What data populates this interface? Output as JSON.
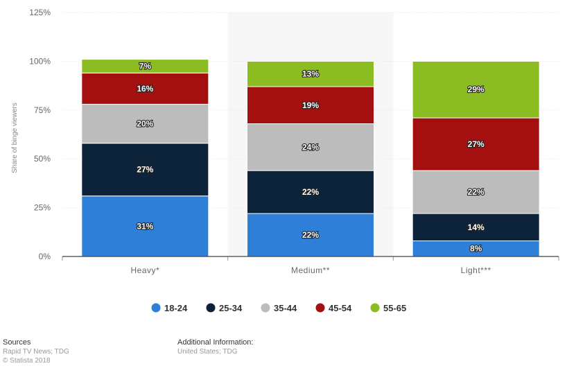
{
  "chart_data": {
    "type": "bar",
    "stacked": true,
    "title": "",
    "xlabel": "",
    "ylabel": "Share of binge viewers",
    "ylim": [
      0,
      125
    ],
    "yticks": [
      "0%",
      "25%",
      "50%",
      "75%",
      "100%",
      "125%"
    ],
    "ytick_values": [
      0,
      25,
      50,
      75,
      100,
      125
    ],
    "categories": [
      "Heavy*",
      "Medium**",
      "Light***"
    ],
    "highlighted_category": "Medium**",
    "grid": true,
    "legend_position": "bottom",
    "series": [
      {
        "name": "18-24",
        "color": "#2f7ed8",
        "values": [
          31,
          22,
          8
        ],
        "labels": [
          "31%",
          "22%",
          "8%"
        ]
      },
      {
        "name": "25-34",
        "color": "#0d233a",
        "values": [
          27,
          22,
          14
        ],
        "labels": [
          "27%",
          "22%",
          "14%"
        ]
      },
      {
        "name": "35-44",
        "color": "#bcbcbc",
        "values": [
          20,
          24,
          22
        ],
        "labels": [
          "20%",
          "24%",
          "22%"
        ]
      },
      {
        "name": "45-54",
        "color": "#a40f0f",
        "values": [
          16,
          19,
          27
        ],
        "labels": [
          "16%",
          "19%",
          "27%"
        ]
      },
      {
        "name": "55-65",
        "color": "#8bbc21",
        "values": [
          7,
          13,
          29
        ],
        "labels": [
          "7%",
          "13%",
          "29%"
        ]
      }
    ]
  },
  "footer": {
    "sources_heading": "Sources",
    "sources_text": "Rapid TV News; TDG",
    "copyright": "© Statista 2018",
    "additional_heading": "Additional Information:",
    "additional_text": "United States; TDG"
  }
}
